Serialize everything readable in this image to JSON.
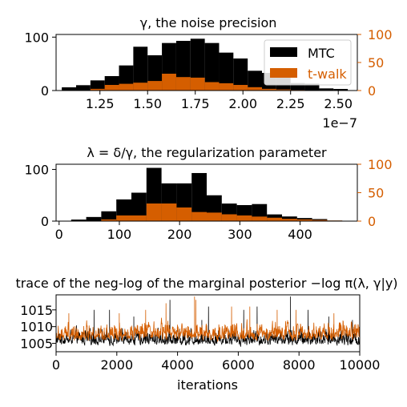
{
  "figure": {
    "colors": {
      "mtc": "#000000",
      "twalk": "#d55e00",
      "axis": "#000000"
    }
  },
  "chart_data": [
    {
      "type": "bar",
      "title": "γ, the noise precision",
      "xlabel": "",
      "multiplier": "1e−7",
      "xlim": [
        1.02,
        2.6
      ],
      "xticks": [
        1.25,
        1.5,
        1.75,
        2.0,
        2.25,
        2.5
      ],
      "xtick_labels": [
        "1.25",
        "1.50",
        "1.75",
        "2.00",
        "2.25",
        "2.50"
      ],
      "ylim_left": [
        0,
        105
      ],
      "yticks_left": [
        0,
        100
      ],
      "ytick_labels_left": [
        "0",
        "100"
      ],
      "ylim_right": [
        0,
        100
      ],
      "yticks_right": [
        0,
        50,
        100
      ],
      "ytick_labels_right": [
        "0",
        "50",
        "100"
      ],
      "legend": {
        "placement": "upper right",
        "entries": [
          "MTC",
          "t-walk"
        ]
      },
      "series": [
        {
          "name": "MTC",
          "axis": "left",
          "color": "#000000",
          "bins": [
            [
              1.05,
              1.125,
              6
            ],
            [
              1.125,
              1.2,
              10
            ],
            [
              1.2,
              1.275,
              19
            ],
            [
              1.275,
              1.35,
              27
            ],
            [
              1.35,
              1.425,
              47
            ],
            [
              1.425,
              1.5,
              82
            ],
            [
              1.5,
              1.575,
              66
            ],
            [
              1.575,
              1.65,
              89
            ],
            [
              1.65,
              1.725,
              93
            ],
            [
              1.725,
              1.8,
              97
            ],
            [
              1.8,
              1.875,
              89
            ],
            [
              1.875,
              1.95,
              71
            ],
            [
              1.95,
              2.025,
              60
            ],
            [
              2.025,
              2.1,
              37
            ],
            [
              2.1,
              2.175,
              33
            ],
            [
              2.175,
              2.25,
              24
            ],
            [
              2.25,
              2.325,
              14
            ],
            [
              2.325,
              2.4,
              13
            ],
            [
              2.4,
              2.475,
              4
            ],
            [
              2.475,
              2.55,
              3
            ]
          ]
        },
        {
          "name": "t-walk",
          "axis": "right",
          "color": "#d55e00",
          "bins": [
            [
              1.2,
              1.275,
              3
            ],
            [
              1.275,
              1.35,
              10
            ],
            [
              1.35,
              1.425,
              12
            ],
            [
              1.425,
              1.5,
              14
            ],
            [
              1.5,
              1.575,
              17
            ],
            [
              1.575,
              1.65,
              30
            ],
            [
              1.65,
              1.725,
              24
            ],
            [
              1.725,
              1.8,
              23
            ],
            [
              1.8,
              1.875,
              15
            ],
            [
              1.875,
              1.95,
              13
            ],
            [
              1.95,
              2.025,
              10
            ],
            [
              2.025,
              2.1,
              6
            ],
            [
              2.1,
              2.175,
              3
            ],
            [
              2.175,
              2.25,
              2
            ],
            [
              2.25,
              2.325,
              1
            ]
          ]
        }
      ]
    },
    {
      "type": "bar",
      "title": "λ = δ/γ, the regularization parameter",
      "xlabel": "",
      "xlim": [
        -5,
        495
      ],
      "xticks": [
        0,
        100,
        200,
        300,
        400
      ],
      "xtick_labels": [
        "0",
        "100",
        "200",
        "300",
        "400"
      ],
      "ylim_left": [
        0,
        110
      ],
      "yticks_left": [
        0,
        100
      ],
      "ytick_labels_left": [
        "0",
        "100"
      ],
      "ylim_right": [
        0,
        100
      ],
      "yticks_right": [
        0,
        50,
        100
      ],
      "ytick_labels_right": [
        "0",
        "50",
        "100"
      ],
      "series": [
        {
          "name": "MTC",
          "axis": "left",
          "color": "#000000",
          "bins": [
            [
              20,
              45,
              3
            ],
            [
              45,
              70,
              8
            ],
            [
              70,
              95,
              19
            ],
            [
              95,
              120,
              42
            ],
            [
              120,
              145,
              55
            ],
            [
              145,
              170,
              103
            ],
            [
              170,
              195,
              73
            ],
            [
              195,
              220,
              73
            ],
            [
              220,
              245,
              93
            ],
            [
              245,
              270,
              50
            ],
            [
              270,
              295,
              34
            ],
            [
              295,
              320,
              31
            ],
            [
              320,
              345,
              33
            ],
            [
              345,
              370,
              13
            ],
            [
              370,
              395,
              9
            ],
            [
              395,
              420,
              6
            ],
            [
              420,
              445,
              4
            ],
            [
              445,
              470,
              1
            ]
          ]
        },
        {
          "name": "t-walk",
          "axis": "right",
          "color": "#d55e00",
          "bins": [
            [
              70,
              95,
              3
            ],
            [
              95,
              120,
              10
            ],
            [
              120,
              145,
              10
            ],
            [
              145,
              170,
              31
            ],
            [
              170,
              195,
              31
            ],
            [
              195,
              220,
              24
            ],
            [
              220,
              245,
              16
            ],
            [
              245,
              270,
              15
            ],
            [
              270,
              295,
              12
            ],
            [
              295,
              320,
              10
            ],
            [
              320,
              345,
              8
            ],
            [
              345,
              370,
              6
            ],
            [
              370,
              395,
              4
            ],
            [
              395,
              420,
              3
            ],
            [
              420,
              445,
              2
            ],
            [
              445,
              470,
              1
            ]
          ]
        }
      ]
    },
    {
      "type": "line",
      "title": "trace of the neg-log of the marginal posterior −log π(λ, γ|y)",
      "xlabel": "iterations",
      "ylabel": "",
      "xlim": [
        0,
        10000
      ],
      "ylim": [
        1002.5,
        1019.5
      ],
      "xticks": [
        0,
        2000,
        4000,
        6000,
        8000,
        10000
      ],
      "xtick_labels": [
        "0",
        "2000",
        "4000",
        "6000",
        "8000",
        "10000"
      ],
      "yticks": [
        1005,
        1010,
        1015
      ],
      "ytick_labels": [
        "1005",
        "1010",
        "1015"
      ],
      "series": [
        {
          "name": "MTC",
          "color": "#000000",
          "n_points": 10000,
          "baseline": 1004.5,
          "spread": 2.8,
          "spikes": [
            [
              1250,
              1015
            ],
            [
              1760,
              1015
            ],
            [
              2560,
              1013
            ],
            [
              3750,
              1018
            ],
            [
              4800,
              1012
            ],
            [
              5020,
              1016
            ],
            [
              6180,
              1015
            ],
            [
              6620,
              1016
            ],
            [
              7720,
              1019
            ],
            [
              8300,
              1015
            ],
            [
              8980,
              1013
            ],
            [
              9760,
              1012
            ]
          ]
        },
        {
          "name": "t-walk",
          "color": "#d55e00",
          "n_points": 10000,
          "baseline": 1006,
          "spread": 3.2,
          "spikes": [
            [
              420,
              1014
            ],
            [
              2080,
              1014
            ],
            [
              2950,
              1015
            ],
            [
              3620,
              1017
            ],
            [
              4560,
              1019
            ],
            [
              4600,
              1018
            ],
            [
              5780,
              1016
            ],
            [
              6380,
              1016
            ],
            [
              7280,
              1015
            ],
            [
              7900,
              1015
            ],
            [
              9150,
              1014
            ]
          ]
        }
      ]
    }
  ]
}
